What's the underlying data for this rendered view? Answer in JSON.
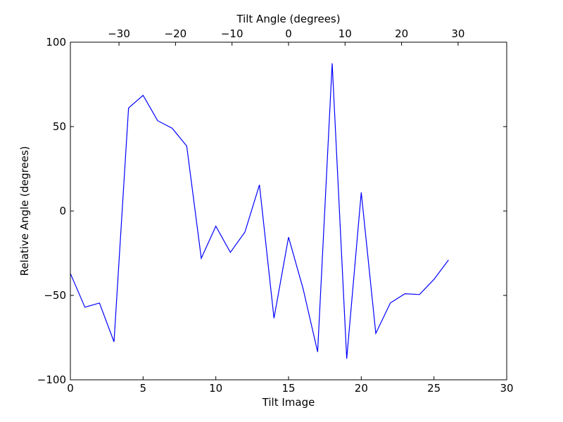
{
  "chart_data": {
    "type": "line",
    "xlabel": "Tilt Image",
    "x2label": "Tilt Angle (degrees)",
    "ylabel": "Relative Angle (degrees)",
    "xlim": [
      0,
      30
    ],
    "ylim": [
      -100,
      100
    ],
    "x2lim": [
      -38.6,
      38.6
    ],
    "xticks": [
      0,
      5,
      10,
      15,
      20,
      25,
      30
    ],
    "x2ticks": [
      -30,
      -20,
      -10,
      0,
      10,
      20,
      30
    ],
    "x2tick_labels": [
      "−30",
      "−20",
      "−10",
      "0",
      "10",
      "20",
      "30"
    ],
    "yticks": [
      -100,
      -50,
      0,
      50,
      100
    ],
    "ytick_labels": [
      "−100",
      "−50",
      "0",
      "50",
      "100"
    ],
    "grid": false,
    "line_color": "#0000ff",
    "series": [
      {
        "x": [
          0,
          1,
          2,
          3,
          4,
          5,
          6,
          7,
          8,
          9,
          10,
          11,
          12,
          13,
          14,
          15,
          16,
          17,
          18,
          19,
          20,
          21,
          22,
          23,
          24,
          25,
          26
        ],
        "values": [
          -37,
          -57,
          -54.5,
          -77.5,
          61,
          68.5,
          53.5,
          49,
          38.5,
          -28,
          -9,
          -24.5,
          -12.5,
          15.5,
          -63.5,
          -15.5,
          -46,
          -83.5,
          87.5,
          -87.5,
          11,
          -72.5,
          -54.5,
          -49,
          -49.5,
          -40.5,
          -29
        ]
      }
    ]
  }
}
